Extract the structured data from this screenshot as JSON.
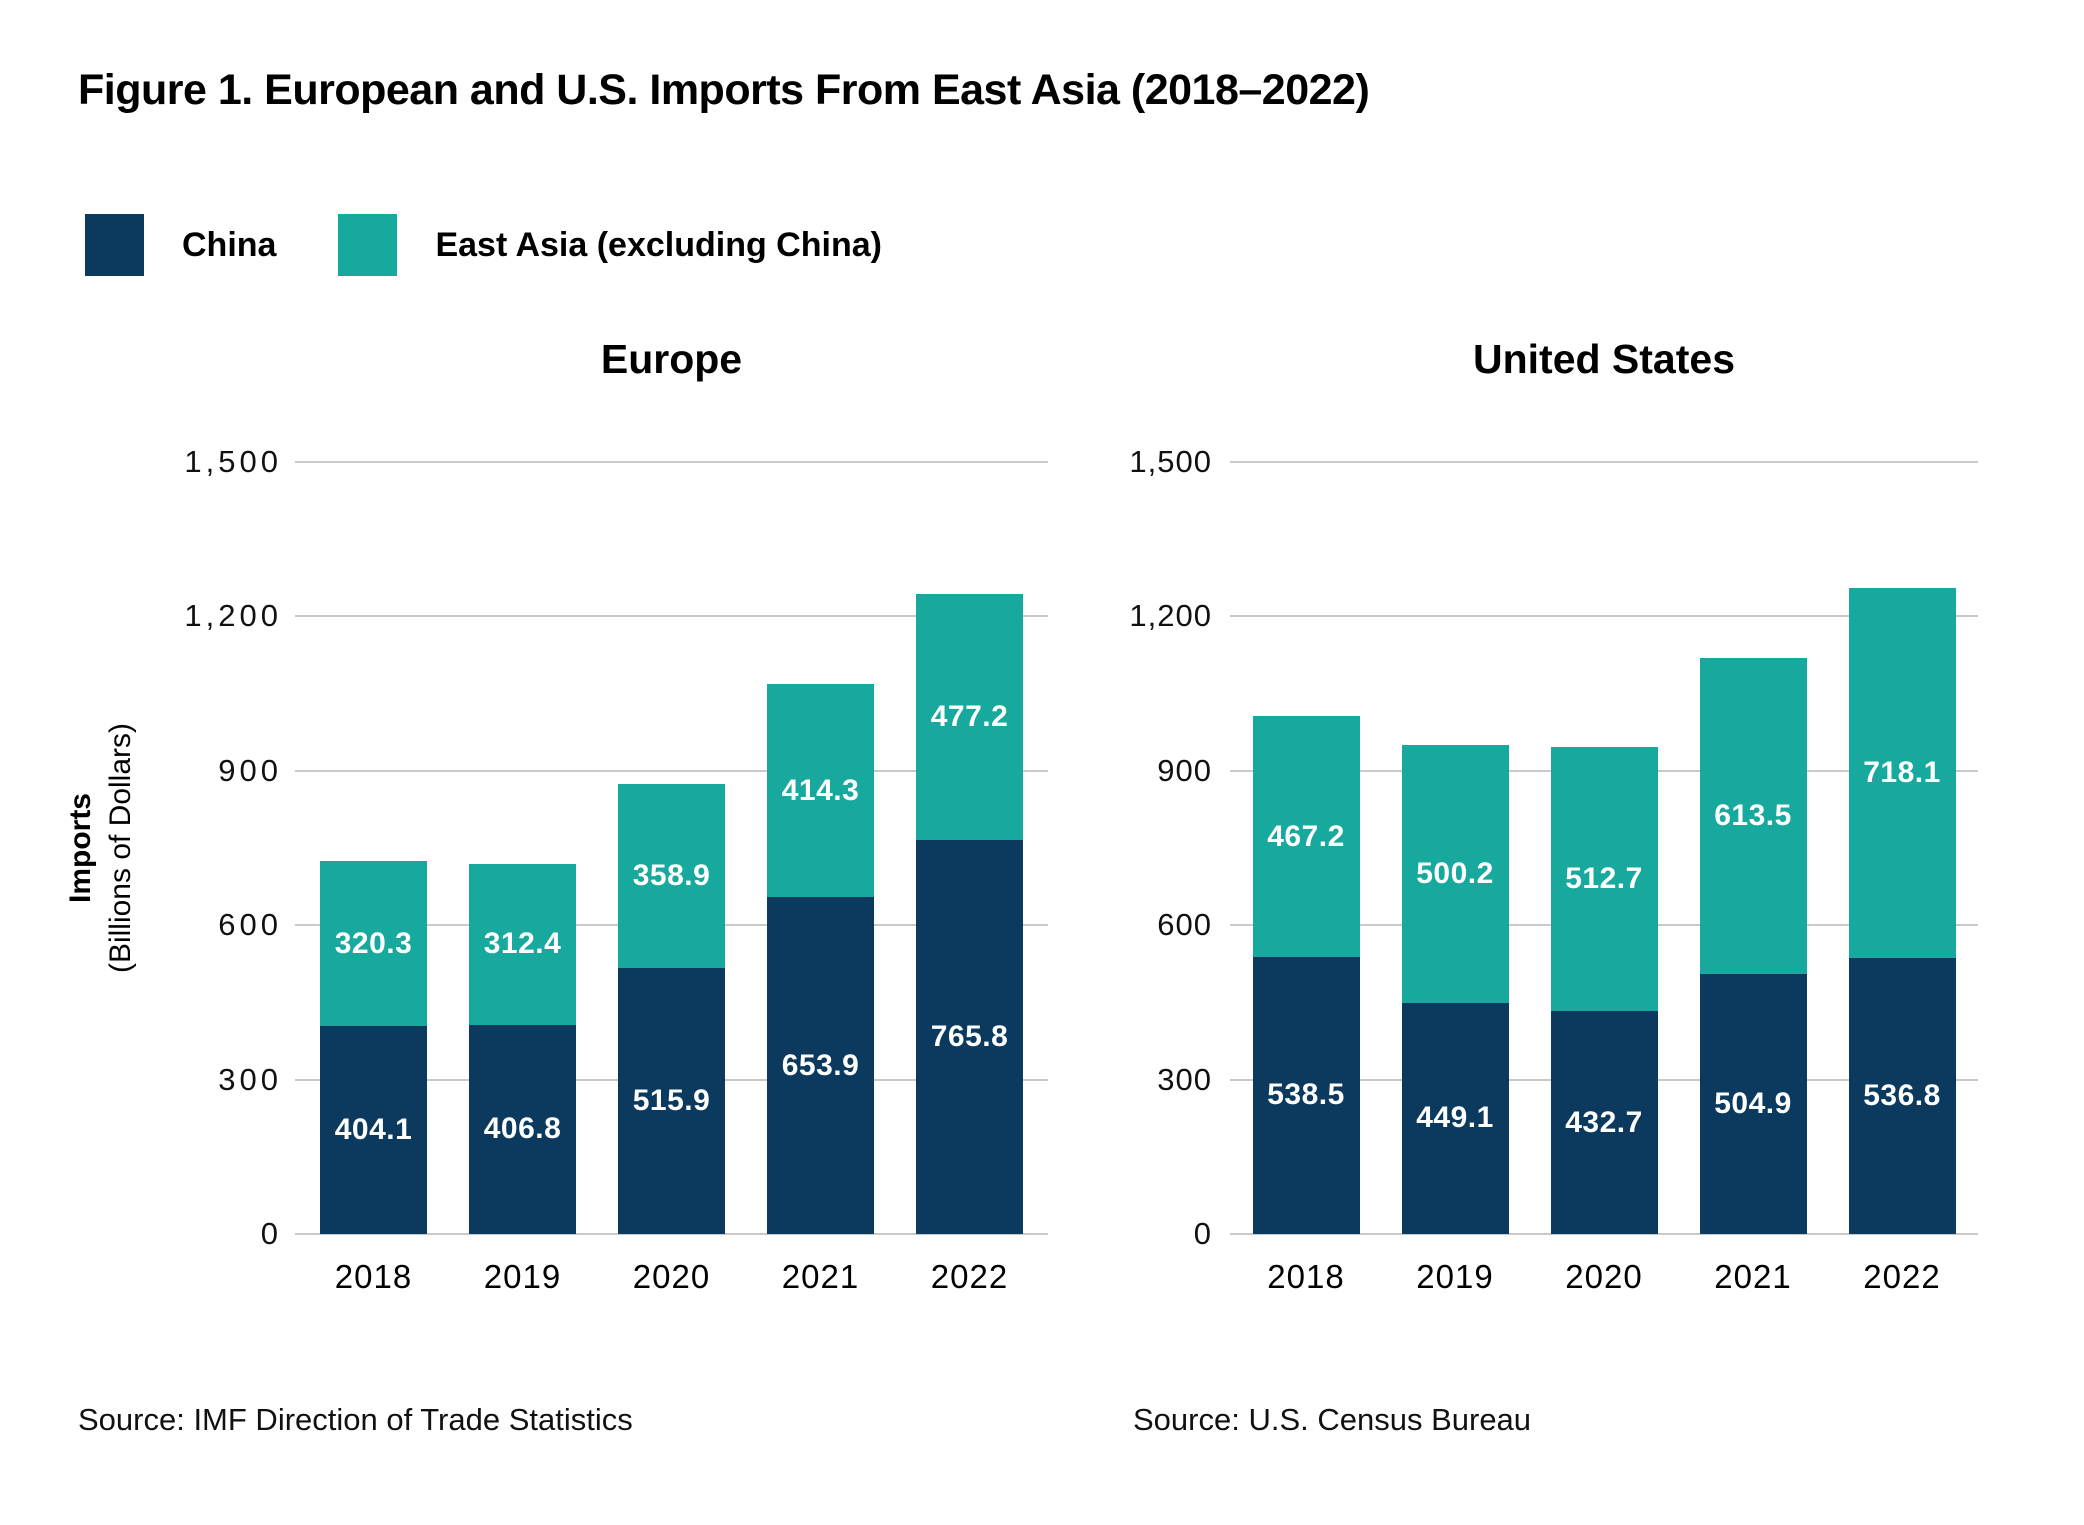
{
  "title": "Figure 1. European and U.S. Imports From East Asia (2018–2022)",
  "legend": [
    {
      "label": "China",
      "color": "#0b3a5e"
    },
    {
      "label": "East Asia (excluding China)",
      "color": "#18a99e"
    }
  ],
  "y_axis": {
    "label_bold": "Imports",
    "label_normal": "(Billions of Dollars)",
    "max": 1500,
    "ticks": [
      0,
      300,
      600,
      900,
      1200,
      1500
    ]
  },
  "grid_color": "#c9c9c9",
  "chart_data": [
    {
      "type": "bar",
      "stacked": true,
      "title": "Europe",
      "categories": [
        "2018",
        "2019",
        "2020",
        "2021",
        "2022"
      ],
      "series": [
        {
          "name": "China",
          "color": "#0b3a5e",
          "values": [
            404.1,
            406.8,
            515.9,
            653.9,
            765.8
          ]
        },
        {
          "name": "East Asia (excluding China)",
          "color": "#18a99e",
          "values": [
            320.3,
            312.4,
            358.9,
            414.3,
            477.2
          ]
        }
      ],
      "ylabel": "Imports (Billions of Dollars)",
      "ylim": [
        0,
        1500
      ],
      "yticks": [
        0,
        300,
        600,
        900,
        1200,
        1500
      ],
      "grid": true,
      "legend_position": "top-left",
      "source": "Source: IMF Direction of Trade Statistics"
    },
    {
      "type": "bar",
      "stacked": true,
      "title": "United States",
      "categories": [
        "2018",
        "2019",
        "2020",
        "2021",
        "2022"
      ],
      "series": [
        {
          "name": "China",
          "color": "#0b3a5e",
          "values": [
            538.5,
            449.1,
            432.7,
            504.9,
            536.8
          ]
        },
        {
          "name": "East Asia (excluding China)",
          "color": "#18a99e",
          "values": [
            467.2,
            500.2,
            512.7,
            613.5,
            718.1
          ]
        }
      ],
      "ylabel": "Imports (Billions of Dollars)",
      "ylim": [
        0,
        1500
      ],
      "yticks": [
        0,
        300,
        600,
        900,
        1200,
        1500
      ],
      "grid": true,
      "legend_position": "top-left",
      "source": "Source: U.S. Census Bureau"
    }
  ]
}
